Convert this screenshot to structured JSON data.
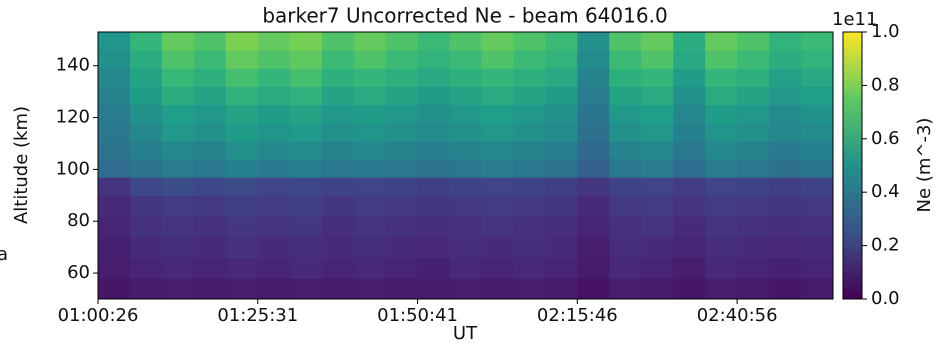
{
  "chart_data": {
    "type": "heatmap",
    "title": "barker7 Uncorrected Ne - beam 64016.0",
    "x_label": "UT",
    "y_label": "Altitude (km)",
    "colorbar_label": "Ne (m^-3)",
    "colorbar_offset": "1e11",
    "side_text": "a",
    "xlim": [
      0,
      23
    ],
    "xticks": [
      {
        "value": 0,
        "label": "01:00:26"
      },
      {
        "value": 5,
        "label": "01:25:31"
      },
      {
        "value": 10,
        "label": "01:50:41"
      },
      {
        "value": 15,
        "label": "02:15:46"
      },
      {
        "value": 20,
        "label": "02:40:56"
      }
    ],
    "ylim": [
      50,
      153
    ],
    "yticks": [
      60,
      80,
      100,
      120,
      140
    ],
    "y_edges": [
      50,
      58,
      66,
      74,
      82,
      90,
      97,
      104,
      111,
      118,
      125,
      132,
      139,
      146,
      153
    ],
    "colormap": "viridis",
    "clim": [
      0,
      1
    ],
    "cticks": [
      {
        "value": 0,
        "label": "0.0"
      },
      {
        "value": 0.2,
        "label": "0.2"
      },
      {
        "value": 0.4,
        "label": "0.4"
      },
      {
        "value": 0.6,
        "label": "0.6"
      },
      {
        "value": 0.8,
        "label": "0.8"
      },
      {
        "value": 1,
        "label": "1.0"
      }
    ],
    "z": [
      [
        0.06,
        0.07,
        0.08,
        0.07,
        0.08,
        0.07,
        0.08,
        0.07,
        0.08,
        0.07,
        0.07,
        0.08,
        0.07,
        0.08,
        0.07,
        0.05,
        0.08,
        0.07,
        0.06,
        0.08,
        0.07,
        0.06,
        0.07
      ],
      [
        0.08,
        0.1,
        0.11,
        0.1,
        0.11,
        0.1,
        0.12,
        0.1,
        0.11,
        0.1,
        0.09,
        0.11,
        0.1,
        0.11,
        0.1,
        0.07,
        0.11,
        0.1,
        0.08,
        0.11,
        0.1,
        0.09,
        0.1
      ],
      [
        0.09,
        0.12,
        0.13,
        0.12,
        0.14,
        0.12,
        0.13,
        0.12,
        0.13,
        0.12,
        0.11,
        0.13,
        0.12,
        0.13,
        0.12,
        0.08,
        0.13,
        0.12,
        0.1,
        0.13,
        0.12,
        0.11,
        0.12
      ],
      [
        0.1,
        0.14,
        0.15,
        0.14,
        0.16,
        0.15,
        0.16,
        0.13,
        0.15,
        0.14,
        0.13,
        0.14,
        0.15,
        0.14,
        0.13,
        0.1,
        0.14,
        0.15,
        0.12,
        0.15,
        0.14,
        0.13,
        0.14
      ],
      [
        0.12,
        0.16,
        0.18,
        0.17,
        0.19,
        0.18,
        0.19,
        0.16,
        0.18,
        0.17,
        0.16,
        0.17,
        0.18,
        0.17,
        0.16,
        0.12,
        0.17,
        0.18,
        0.15,
        0.18,
        0.17,
        0.16,
        0.17
      ],
      [
        0.15,
        0.22,
        0.24,
        0.22,
        0.23,
        0.21,
        0.22,
        0.2,
        0.21,
        0.2,
        0.19,
        0.2,
        0.21,
        0.2,
        0.19,
        0.16,
        0.2,
        0.21,
        0.18,
        0.21,
        0.2,
        0.19,
        0.2
      ],
      [
        0.35,
        0.38,
        0.42,
        0.4,
        0.44,
        0.41,
        0.43,
        0.4,
        0.41,
        0.4,
        0.38,
        0.4,
        0.42,
        0.4,
        0.38,
        0.3,
        0.4,
        0.42,
        0.36,
        0.42,
        0.4,
        0.37,
        0.39
      ],
      [
        0.38,
        0.43,
        0.47,
        0.45,
        0.5,
        0.47,
        0.49,
        0.45,
        0.47,
        0.45,
        0.43,
        0.45,
        0.47,
        0.45,
        0.43,
        0.34,
        0.45,
        0.47,
        0.4,
        0.47,
        0.45,
        0.41,
        0.44
      ],
      [
        0.4,
        0.47,
        0.53,
        0.5,
        0.55,
        0.52,
        0.54,
        0.5,
        0.52,
        0.5,
        0.48,
        0.5,
        0.53,
        0.5,
        0.48,
        0.37,
        0.5,
        0.53,
        0.44,
        0.52,
        0.5,
        0.46,
        0.48
      ],
      [
        0.42,
        0.5,
        0.56,
        0.53,
        0.58,
        0.55,
        0.58,
        0.53,
        0.55,
        0.53,
        0.5,
        0.53,
        0.56,
        0.53,
        0.5,
        0.39,
        0.53,
        0.56,
        0.46,
        0.55,
        0.53,
        0.48,
        0.51
      ],
      [
        0.45,
        0.55,
        0.62,
        0.58,
        0.64,
        0.61,
        0.64,
        0.58,
        0.61,
        0.58,
        0.55,
        0.58,
        0.61,
        0.58,
        0.55,
        0.42,
        0.58,
        0.61,
        0.5,
        0.61,
        0.58,
        0.53,
        0.56
      ],
      [
        0.47,
        0.58,
        0.67,
        0.63,
        0.7,
        0.66,
        0.7,
        0.63,
        0.66,
        0.63,
        0.6,
        0.63,
        0.66,
        0.63,
        0.6,
        0.45,
        0.63,
        0.66,
        0.55,
        0.66,
        0.63,
        0.57,
        0.6
      ],
      [
        0.5,
        0.62,
        0.72,
        0.68,
        0.76,
        0.72,
        0.75,
        0.68,
        0.72,
        0.68,
        0.65,
        0.68,
        0.72,
        0.68,
        0.65,
        0.48,
        0.68,
        0.72,
        0.6,
        0.72,
        0.68,
        0.62,
        0.65
      ],
      [
        0.52,
        0.66,
        0.76,
        0.72,
        0.8,
        0.76,
        0.79,
        0.72,
        0.76,
        0.72,
        0.68,
        0.72,
        0.76,
        0.72,
        0.68,
        0.5,
        0.72,
        0.76,
        0.62,
        0.76,
        0.72,
        0.65,
        0.68
      ]
    ]
  }
}
